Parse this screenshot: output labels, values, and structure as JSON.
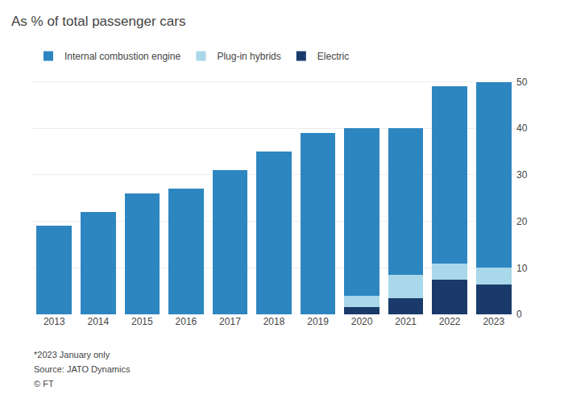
{
  "chart_data": {
    "type": "bar",
    "title": "As % of total passenger cars",
    "categories": [
      "2013",
      "2014",
      "2015",
      "2016",
      "2017",
      "2018",
      "2019",
      "2020",
      "2021",
      "2022",
      "2023"
    ],
    "series": [
      {
        "name": "Electric",
        "color": "#1a3a6b",
        "values": [
          0,
          0,
          0,
          0,
          0,
          0,
          0,
          1.5,
          3.5,
          7.5,
          6.5
        ]
      },
      {
        "name": "Plug-in hybrids",
        "color": "#a8d8ea",
        "values": [
          0,
          0,
          0,
          0,
          0,
          0,
          0,
          2.5,
          5.0,
          3.5,
          3.5
        ]
      },
      {
        "name": "Internal combustion engine",
        "color": "#2e86c1",
        "values": [
          19,
          22,
          26,
          27,
          31,
          35,
          39,
          36,
          31.5,
          38,
          40
        ]
      }
    ],
    "stacked": true,
    "ylim": [
      0,
      52
    ],
    "yticks": [
      0,
      10,
      20,
      30,
      40,
      50
    ],
    "grid": true,
    "legend": "top left",
    "annotations": [
      "*2023 January only",
      "Source: JATO Dynamics",
      "© FT"
    ]
  }
}
